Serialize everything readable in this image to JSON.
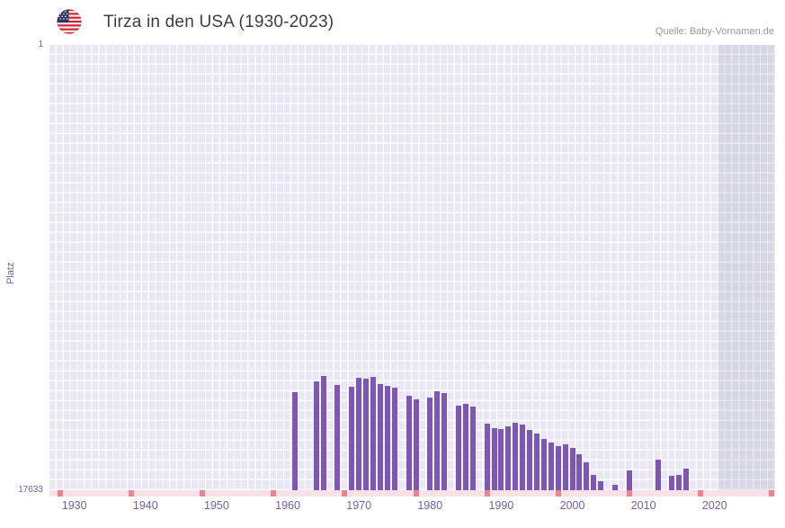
{
  "header": {
    "title": "Tirza in den USA (1930-2023)",
    "source": "Quelle: Baby-Vornamen.de"
  },
  "chart_data": {
    "type": "bar",
    "title": "Tirza in den USA (1930-2023)",
    "ylabel": "Platz",
    "y_axis": {
      "top_label": "1",
      "bottom_label": "17633",
      "min": 1,
      "max": 17633,
      "inverted": true
    },
    "x_axis": {
      "tick_years": [
        1930,
        1940,
        1950,
        1960,
        1970,
        1980,
        1990,
        2000,
        2010,
        2020
      ],
      "range": [
        1927,
        2029
      ]
    },
    "bars": [
      {
        "year": 1961,
        "rank": 13760
      },
      {
        "year": 1964,
        "rank": 13320
      },
      {
        "year": 1965,
        "rank": 13120
      },
      {
        "year": 1967,
        "rank": 13480
      },
      {
        "year": 1969,
        "rank": 13540
      },
      {
        "year": 1970,
        "rank": 13190
      },
      {
        "year": 1971,
        "rank": 13230
      },
      {
        "year": 1972,
        "rank": 13140
      },
      {
        "year": 1973,
        "rank": 13440
      },
      {
        "year": 1974,
        "rank": 13490
      },
      {
        "year": 1975,
        "rank": 13580
      },
      {
        "year": 1977,
        "rank": 13900
      },
      {
        "year": 1978,
        "rank": 14020
      },
      {
        "year": 1980,
        "rank": 13980
      },
      {
        "year": 1981,
        "rank": 13720
      },
      {
        "year": 1982,
        "rank": 13790
      },
      {
        "year": 1984,
        "rank": 14280
      },
      {
        "year": 1985,
        "rank": 14230
      },
      {
        "year": 1986,
        "rank": 14320
      },
      {
        "year": 1988,
        "rank": 14990
      },
      {
        "year": 1989,
        "rank": 15160
      },
      {
        "year": 1990,
        "rank": 15220
      },
      {
        "year": 1991,
        "rank": 15110
      },
      {
        "year": 1992,
        "rank": 14950
      },
      {
        "year": 1993,
        "rank": 15040
      },
      {
        "year": 1994,
        "rank": 15250
      },
      {
        "year": 1995,
        "rank": 15390
      },
      {
        "year": 1996,
        "rank": 15610
      },
      {
        "year": 1997,
        "rank": 15750
      },
      {
        "year": 1998,
        "rank": 15870
      },
      {
        "year": 1999,
        "rank": 15830
      },
      {
        "year": 2000,
        "rank": 15960
      },
      {
        "year": 2001,
        "rank": 16190
      },
      {
        "year": 2002,
        "rank": 16540
      },
      {
        "year": 2003,
        "rank": 17020
      },
      {
        "year": 2004,
        "rank": 17280
      },
      {
        "year": 2006,
        "rank": 17420
      },
      {
        "year": 2008,
        "rank": 16840
      },
      {
        "year": 2012,
        "rank": 16430
      },
      {
        "year": 2014,
        "rank": 17070
      },
      {
        "year": 2015,
        "rank": 17020
      },
      {
        "year": 2016,
        "rank": 16790
      }
    ],
    "unranked_marks_years": [
      1928,
      1938,
      1948,
      1958,
      1968,
      1978,
      1988,
      1998,
      2008,
      2018,
      2028
    ],
    "recent_band_start_year": 2021,
    "grid": true,
    "legend": false,
    "colors": {
      "bar": "#7e57b2",
      "plot_bg": "#e9e7f3",
      "grid_line": "#ffffff",
      "strip_bg": "#f9e2e7",
      "strip_mark": "#e9858f",
      "band": "rgba(104,100,130,0.13)",
      "axis_text": "#7160a8",
      "title_text": "#3a3f47",
      "source_text": "#989898"
    }
  }
}
